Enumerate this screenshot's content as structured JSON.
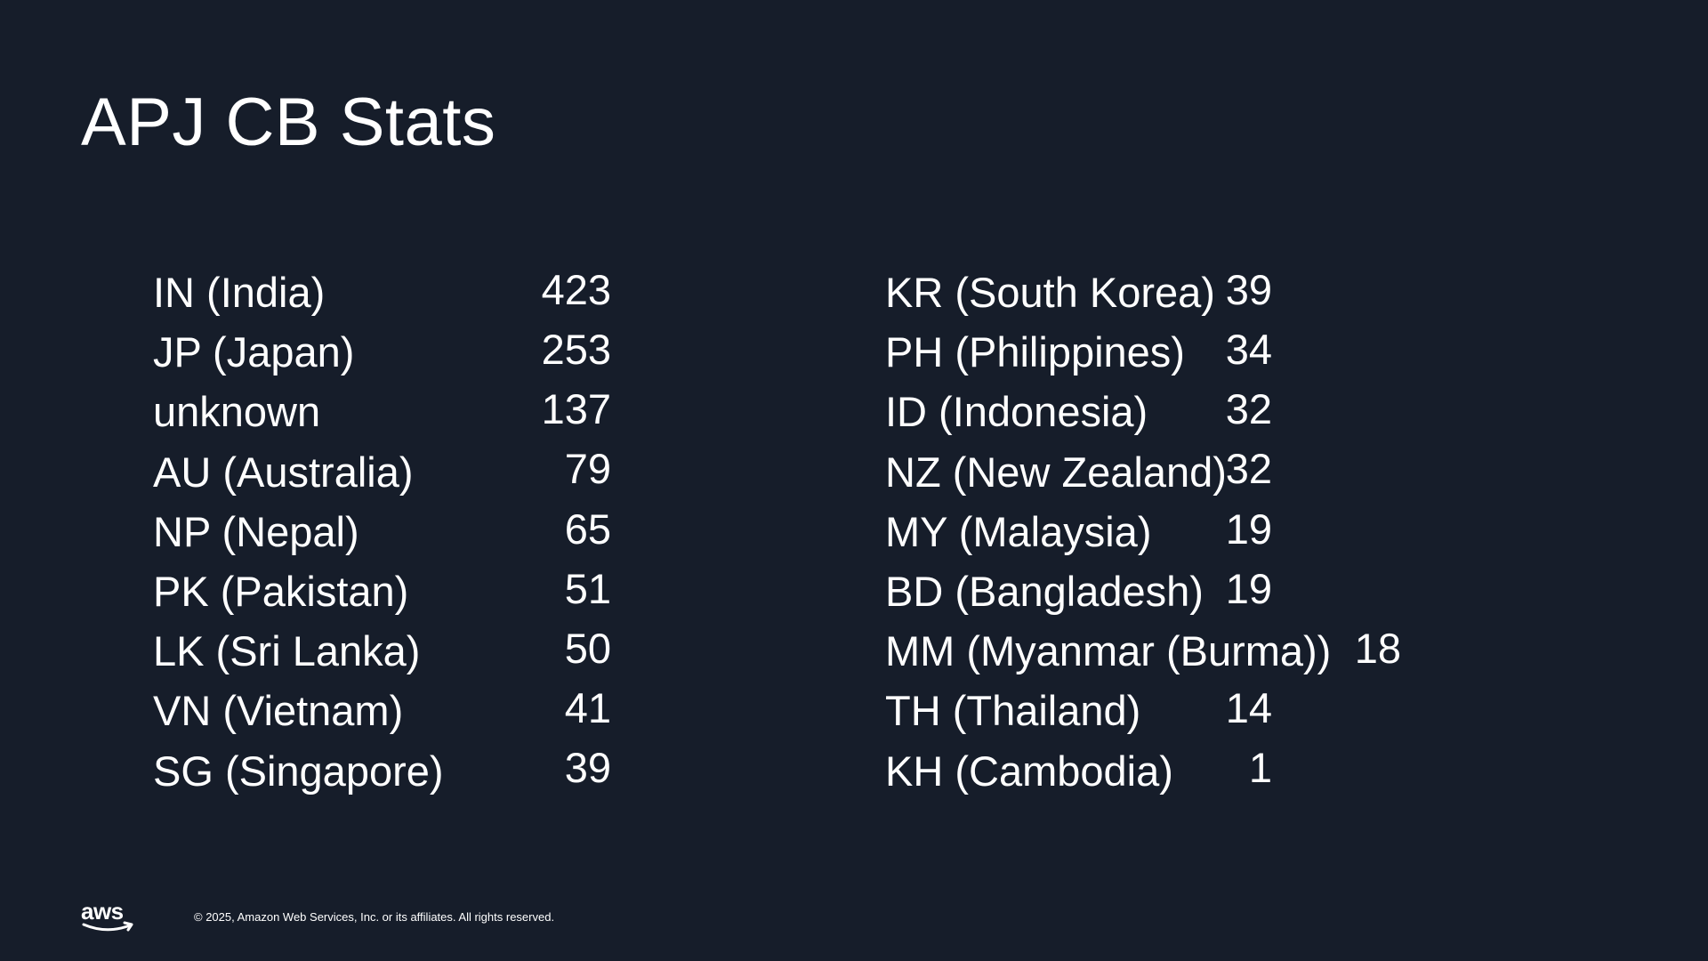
{
  "slide": {
    "title": "APJ CB Stats"
  },
  "stats": {
    "left": [
      {
        "country": "IN (India)",
        "count": "423"
      },
      {
        "country": "JP (Japan)",
        "count": "253"
      },
      {
        "country": "unknown",
        "count": "137"
      },
      {
        "country": "AU (Australia)",
        "count": "79"
      },
      {
        "country": "NP (Nepal)",
        "count": "65"
      },
      {
        "country": "PK (Pakistan)",
        "count": "51"
      },
      {
        "country": "LK (Sri Lanka)",
        "count": "50"
      },
      {
        "country": "VN (Vietnam)",
        "count": "41"
      },
      {
        "country": "SG (Singapore)",
        "count": "39"
      }
    ],
    "right": [
      {
        "country": "KR (South Korea)",
        "count": "39"
      },
      {
        "country": "PH (Philippines)",
        "count": "34"
      },
      {
        "country": "ID (Indonesia)",
        "count": "32"
      },
      {
        "country": "NZ (New Zealand)",
        "count": "32"
      },
      {
        "country": "MY (Malaysia)",
        "count": "19"
      },
      {
        "country": "BD (Bangladesh)",
        "count": "19"
      },
      {
        "country": "MM (Myanmar (Burma))",
        "count": "18"
      },
      {
        "country": "TH (Thailand)",
        "count": "14"
      },
      {
        "country": "KH (Cambodia)",
        "count": "1"
      }
    ]
  },
  "footer": {
    "logo_text": "aws",
    "logo_icon": "aws-logo-icon",
    "copyright": "© 2025, Amazon Web Services, Inc. or its affiliates. All rights reserved."
  },
  "colors": {
    "background": "#161d2a",
    "text": "#ffffff"
  }
}
